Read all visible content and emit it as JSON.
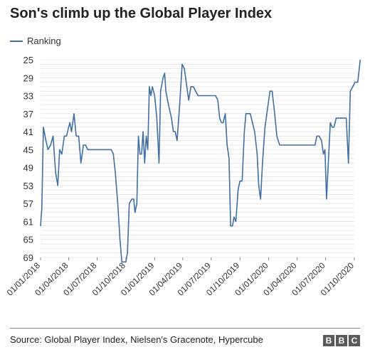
{
  "header": {
    "title": "Son's climb up the Global Player Index"
  },
  "legend": {
    "label": "Ranking"
  },
  "footer": {
    "source": "Source: Global Player Index, Nielsen's Gracenote, Hypercube",
    "logo": [
      "B",
      "B",
      "C"
    ]
  },
  "chart_data": {
    "type": "line",
    "title": "Son's climb up the Global Player Index",
    "xlabel": "",
    "ylabel": "",
    "y_inverted": true,
    "ylim": [
      25,
      69
    ],
    "y_ticks": [
      25,
      29,
      33,
      37,
      41,
      45,
      49,
      53,
      57,
      61,
      65,
      69
    ],
    "x_ticks": [
      "01/01/2018",
      "01/04/2018",
      "01/07/2018",
      "01/10/2018",
      "01/01/2019",
      "01/04/2019",
      "01/07/2019",
      "01/10/2019",
      "01/01/2020",
      "01/04/2020",
      "01/07/2020",
      "01/10/2020"
    ],
    "grid": "horizontal",
    "color": "#3f6fa6",
    "series": [
      {
        "name": "Ranking",
        "points": [
          [
            "2018-01-01",
            62
          ],
          [
            "2018-01-05",
            58
          ],
          [
            "2018-01-10",
            40
          ],
          [
            "2018-01-18",
            43
          ],
          [
            "2018-01-25",
            45
          ],
          [
            "2018-02-02",
            44
          ],
          [
            "2018-02-10",
            42
          ],
          [
            "2018-02-18",
            50
          ],
          [
            "2018-02-25",
            53
          ],
          [
            "2018-03-03",
            45
          ],
          [
            "2018-03-10",
            46
          ],
          [
            "2018-03-18",
            42
          ],
          [
            "2018-03-25",
            42
          ],
          [
            "2018-04-01",
            40
          ],
          [
            "2018-04-05",
            39
          ],
          [
            "2018-04-10",
            41
          ],
          [
            "2018-04-18",
            37
          ],
          [
            "2018-04-25",
            42
          ],
          [
            "2018-05-03",
            42
          ],
          [
            "2018-05-10",
            48
          ],
          [
            "2018-05-18",
            44
          ],
          [
            "2018-05-25",
            44
          ],
          [
            "2018-06-01",
            45
          ],
          [
            "2018-06-15",
            45
          ],
          [
            "2018-07-01",
            45
          ],
          [
            "2018-07-15",
            45
          ],
          [
            "2018-08-01",
            45
          ],
          [
            "2018-08-15",
            45
          ],
          [
            "2018-08-22",
            46
          ],
          [
            "2018-08-28",
            50
          ],
          [
            "2018-09-05",
            57
          ],
          [
            "2018-09-12",
            65
          ],
          [
            "2018-09-18",
            70
          ],
          [
            "2018-09-25",
            70
          ],
          [
            "2018-10-01",
            70
          ],
          [
            "2018-10-06",
            68
          ],
          [
            "2018-10-12",
            57
          ],
          [
            "2018-10-20",
            56
          ],
          [
            "2018-10-26",
            56
          ],
          [
            "2018-10-30",
            59
          ],
          [
            "2018-11-05",
            57
          ],
          [
            "2018-11-10",
            42
          ],
          [
            "2018-11-15",
            46
          ],
          [
            "2018-11-20",
            46
          ],
          [
            "2018-11-25",
            41
          ],
          [
            "2018-11-30",
            48
          ],
          [
            "2018-12-05",
            42
          ],
          [
            "2018-12-10",
            45
          ],
          [
            "2018-12-15",
            31
          ],
          [
            "2018-12-20",
            33
          ],
          [
            "2018-12-25",
            31
          ],
          [
            "2019-01-01",
            33
          ],
          [
            "2019-01-08",
            38
          ],
          [
            "2019-01-15",
            48
          ],
          [
            "2019-01-20",
            32
          ],
          [
            "2019-01-28",
            29
          ],
          [
            "2019-02-02",
            28
          ],
          [
            "2019-02-06",
            32
          ],
          [
            "2019-02-14",
            35
          ],
          [
            "2019-02-24",
            38
          ],
          [
            "2019-03-02",
            41
          ],
          [
            "2019-03-08",
            41
          ],
          [
            "2019-03-14",
            43
          ],
          [
            "2019-03-22",
            35
          ],
          [
            "2019-03-30",
            26
          ],
          [
            "2019-04-06",
            27
          ],
          [
            "2019-04-16",
            32
          ],
          [
            "2019-04-20",
            34
          ],
          [
            "2019-04-27",
            31
          ],
          [
            "2019-05-05",
            31
          ],
          [
            "2019-05-12",
            32
          ],
          [
            "2019-05-20",
            33
          ],
          [
            "2019-06-01",
            33
          ],
          [
            "2019-06-15",
            33
          ],
          [
            "2019-07-01",
            33
          ],
          [
            "2019-07-15",
            33
          ],
          [
            "2019-07-22",
            34
          ],
          [
            "2019-07-28",
            38
          ],
          [
            "2019-08-03",
            39
          ],
          [
            "2019-08-08",
            39
          ],
          [
            "2019-08-15",
            37
          ],
          [
            "2019-08-21",
            44
          ],
          [
            "2019-08-27",
            47
          ],
          [
            "2019-09-01",
            62
          ],
          [
            "2019-09-07",
            62
          ],
          [
            "2019-09-12",
            60
          ],
          [
            "2019-09-18",
            61
          ],
          [
            "2019-09-25",
            54
          ],
          [
            "2019-10-01",
            52
          ],
          [
            "2019-10-08",
            52
          ],
          [
            "2019-10-15",
            41
          ],
          [
            "2019-10-20",
            37
          ],
          [
            "2019-10-28",
            37
          ],
          [
            "2019-11-03",
            37
          ],
          [
            "2019-11-10",
            39
          ],
          [
            "2019-11-17",
            41
          ],
          [
            "2019-11-25",
            46
          ],
          [
            "2019-11-30",
            53
          ],
          [
            "2019-12-06",
            56
          ],
          [
            "2019-12-12",
            48
          ],
          [
            "2019-12-20",
            40
          ],
          [
            "2019-12-28",
            36
          ],
          [
            "2020-01-05",
            32
          ],
          [
            "2020-01-12",
            32
          ],
          [
            "2020-01-20",
            37
          ],
          [
            "2020-01-27",
            42
          ],
          [
            "2020-02-05",
            44
          ],
          [
            "2020-02-20",
            44
          ],
          [
            "2020-03-10",
            44
          ],
          [
            "2020-04-01",
            44
          ],
          [
            "2020-04-20",
            44
          ],
          [
            "2020-05-10",
            44
          ],
          [
            "2020-05-28",
            44
          ],
          [
            "2020-06-03",
            42
          ],
          [
            "2020-06-10",
            42
          ],
          [
            "2020-06-18",
            43
          ],
          [
            "2020-06-24",
            46
          ],
          [
            "2020-06-29",
            45
          ],
          [
            "2020-07-04",
            56
          ],
          [
            "2020-07-16",
            39
          ],
          [
            "2020-07-22",
            40
          ],
          [
            "2020-07-28",
            40
          ],
          [
            "2020-08-04",
            38
          ],
          [
            "2020-08-15",
            38
          ],
          [
            "2020-08-28",
            38
          ],
          [
            "2020-09-05",
            38
          ],
          [
            "2020-09-12",
            48
          ],
          [
            "2020-09-18",
            32
          ],
          [
            "2020-09-26",
            31
          ],
          [
            "2020-10-03",
            30
          ],
          [
            "2020-10-12",
            30
          ],
          [
            "2020-10-20",
            25
          ]
        ]
      }
    ]
  }
}
